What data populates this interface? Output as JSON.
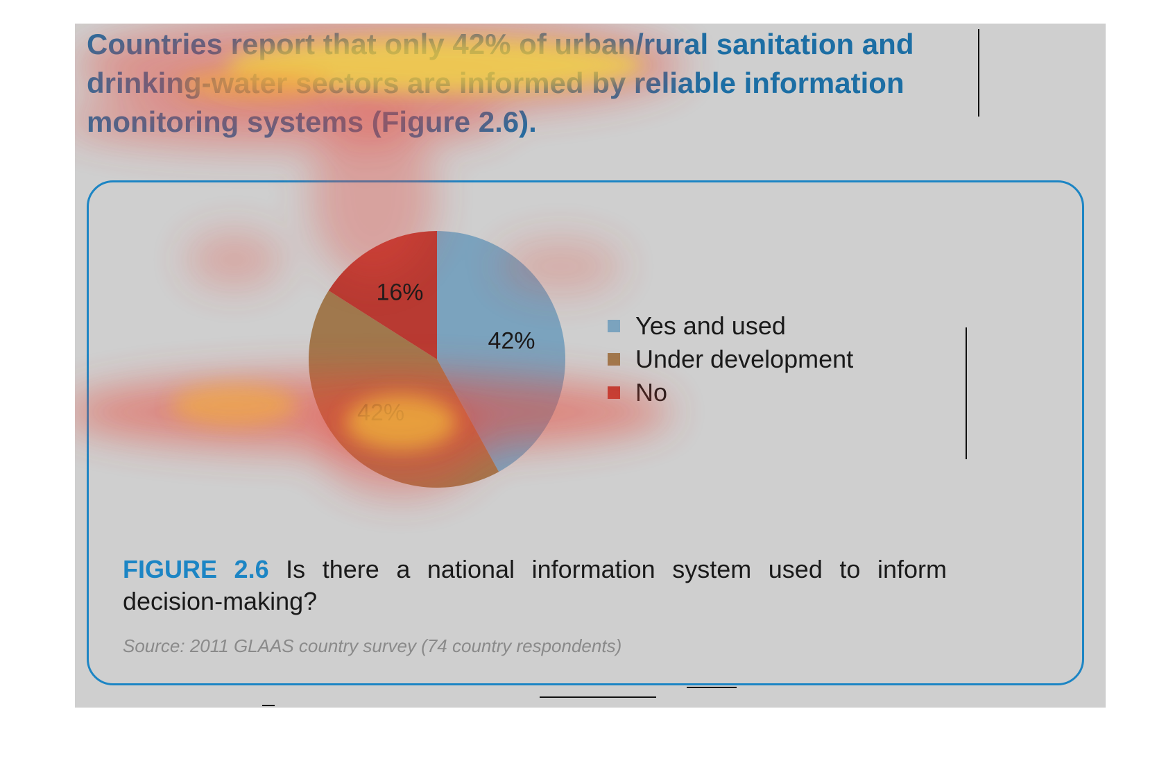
{
  "headline": "Countries report that only 42% of urban/rural sanitation and drinking-water sectors are informed by reliable information monitoring systems (Figure 2.6).",
  "chart_data": {
    "type": "pie",
    "title": "",
    "slices": [
      {
        "label": "Yes and used",
        "value": 42,
        "value_label": "42%",
        "color": "#7ba3be"
      },
      {
        "label": "Under development",
        "value": 42,
        "value_label": "42%",
        "color": "#a0784d"
      },
      {
        "label": "No",
        "value": 16,
        "value_label": "16%",
        "color": "#b83a32"
      }
    ],
    "legend_position": "right"
  },
  "caption": {
    "figure_label": "FIGURE 2.6",
    "text": " Is there a national information system used to inform decision-making?"
  },
  "source": "Source: 2011 GLAAS country survey (74 country respondents)",
  "colors": {
    "accent": "#1c85c4",
    "headline": "#1c6ea4",
    "panel": "#cfcfcf"
  }
}
